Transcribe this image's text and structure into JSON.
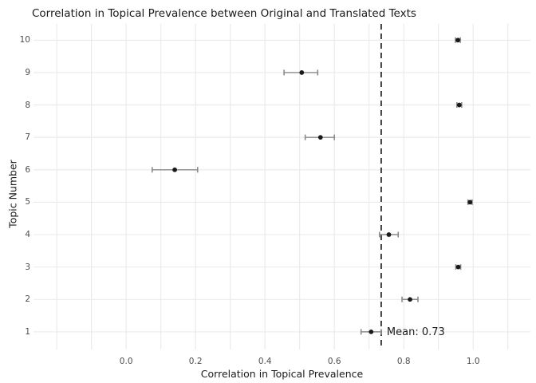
{
  "chart_data": {
    "type": "scatter",
    "title": "Correlation in Topical Prevalence between Original and Translated Texts",
    "xlabel": "Correlation in Topical Prevalence",
    "ylabel": "Topic Number",
    "x_ticks": [
      0.0,
      0.2,
      0.4,
      0.6,
      0.8,
      1.0
    ],
    "x_tick_labels": [
      "0.0",
      "0.2",
      "0.4",
      "0.6",
      "0.8",
      "1.0"
    ],
    "y_ticks": [
      1,
      2,
      3,
      4,
      5,
      6,
      7,
      8,
      9,
      10
    ],
    "xlim": [
      -0.267,
      1.165
    ],
    "ylim": [
      0.455,
      10.5
    ],
    "grid": {
      "x_from": -0.2,
      "x_to": 1.1,
      "x_step": 0.1,
      "shown": true
    },
    "legend": "none",
    "mean_line": {
      "value": 0.735,
      "label": "Mean: 0.73",
      "style": "dashed",
      "orientation": "vertical"
    },
    "series": [
      {
        "name": "topic-correlation",
        "marker": "filled-circle",
        "error_bars": "horizontal-with-caps",
        "points": [
          {
            "topic": 1,
            "value": 0.706,
            "lo": 0.677,
            "hi": 0.735
          },
          {
            "topic": 2,
            "value": 0.818,
            "lo": 0.795,
            "hi": 0.841
          },
          {
            "topic": 3,
            "value": 0.957,
            "lo": 0.95,
            "hi": 0.964
          },
          {
            "topic": 4,
            "value": 0.757,
            "lo": 0.73,
            "hi": 0.784
          },
          {
            "topic": 5,
            "value": 0.991,
            "lo": 0.985,
            "hi": 0.997
          },
          {
            "topic": 6,
            "value": 0.14,
            "lo": 0.075,
            "hi": 0.206
          },
          {
            "topic": 7,
            "value": 0.56,
            "lo": 0.516,
            "hi": 0.6
          },
          {
            "topic": 8,
            "value": 0.96,
            "lo": 0.953,
            "hi": 0.967
          },
          {
            "topic": 9,
            "value": 0.506,
            "lo": 0.455,
            "hi": 0.552
          },
          {
            "topic": 10,
            "value": 0.956,
            "lo": 0.949,
            "hi": 0.963
          }
        ]
      }
    ],
    "colors": {
      "background": "#ffffff",
      "grid": "#e9e9e9",
      "point": "#1a1a1a",
      "errorbar": "#8a8a8a",
      "mean_line": "#2e2e2e",
      "axis_text": "#4d4d4d",
      "title_text": "#1a1a1a"
    }
  }
}
